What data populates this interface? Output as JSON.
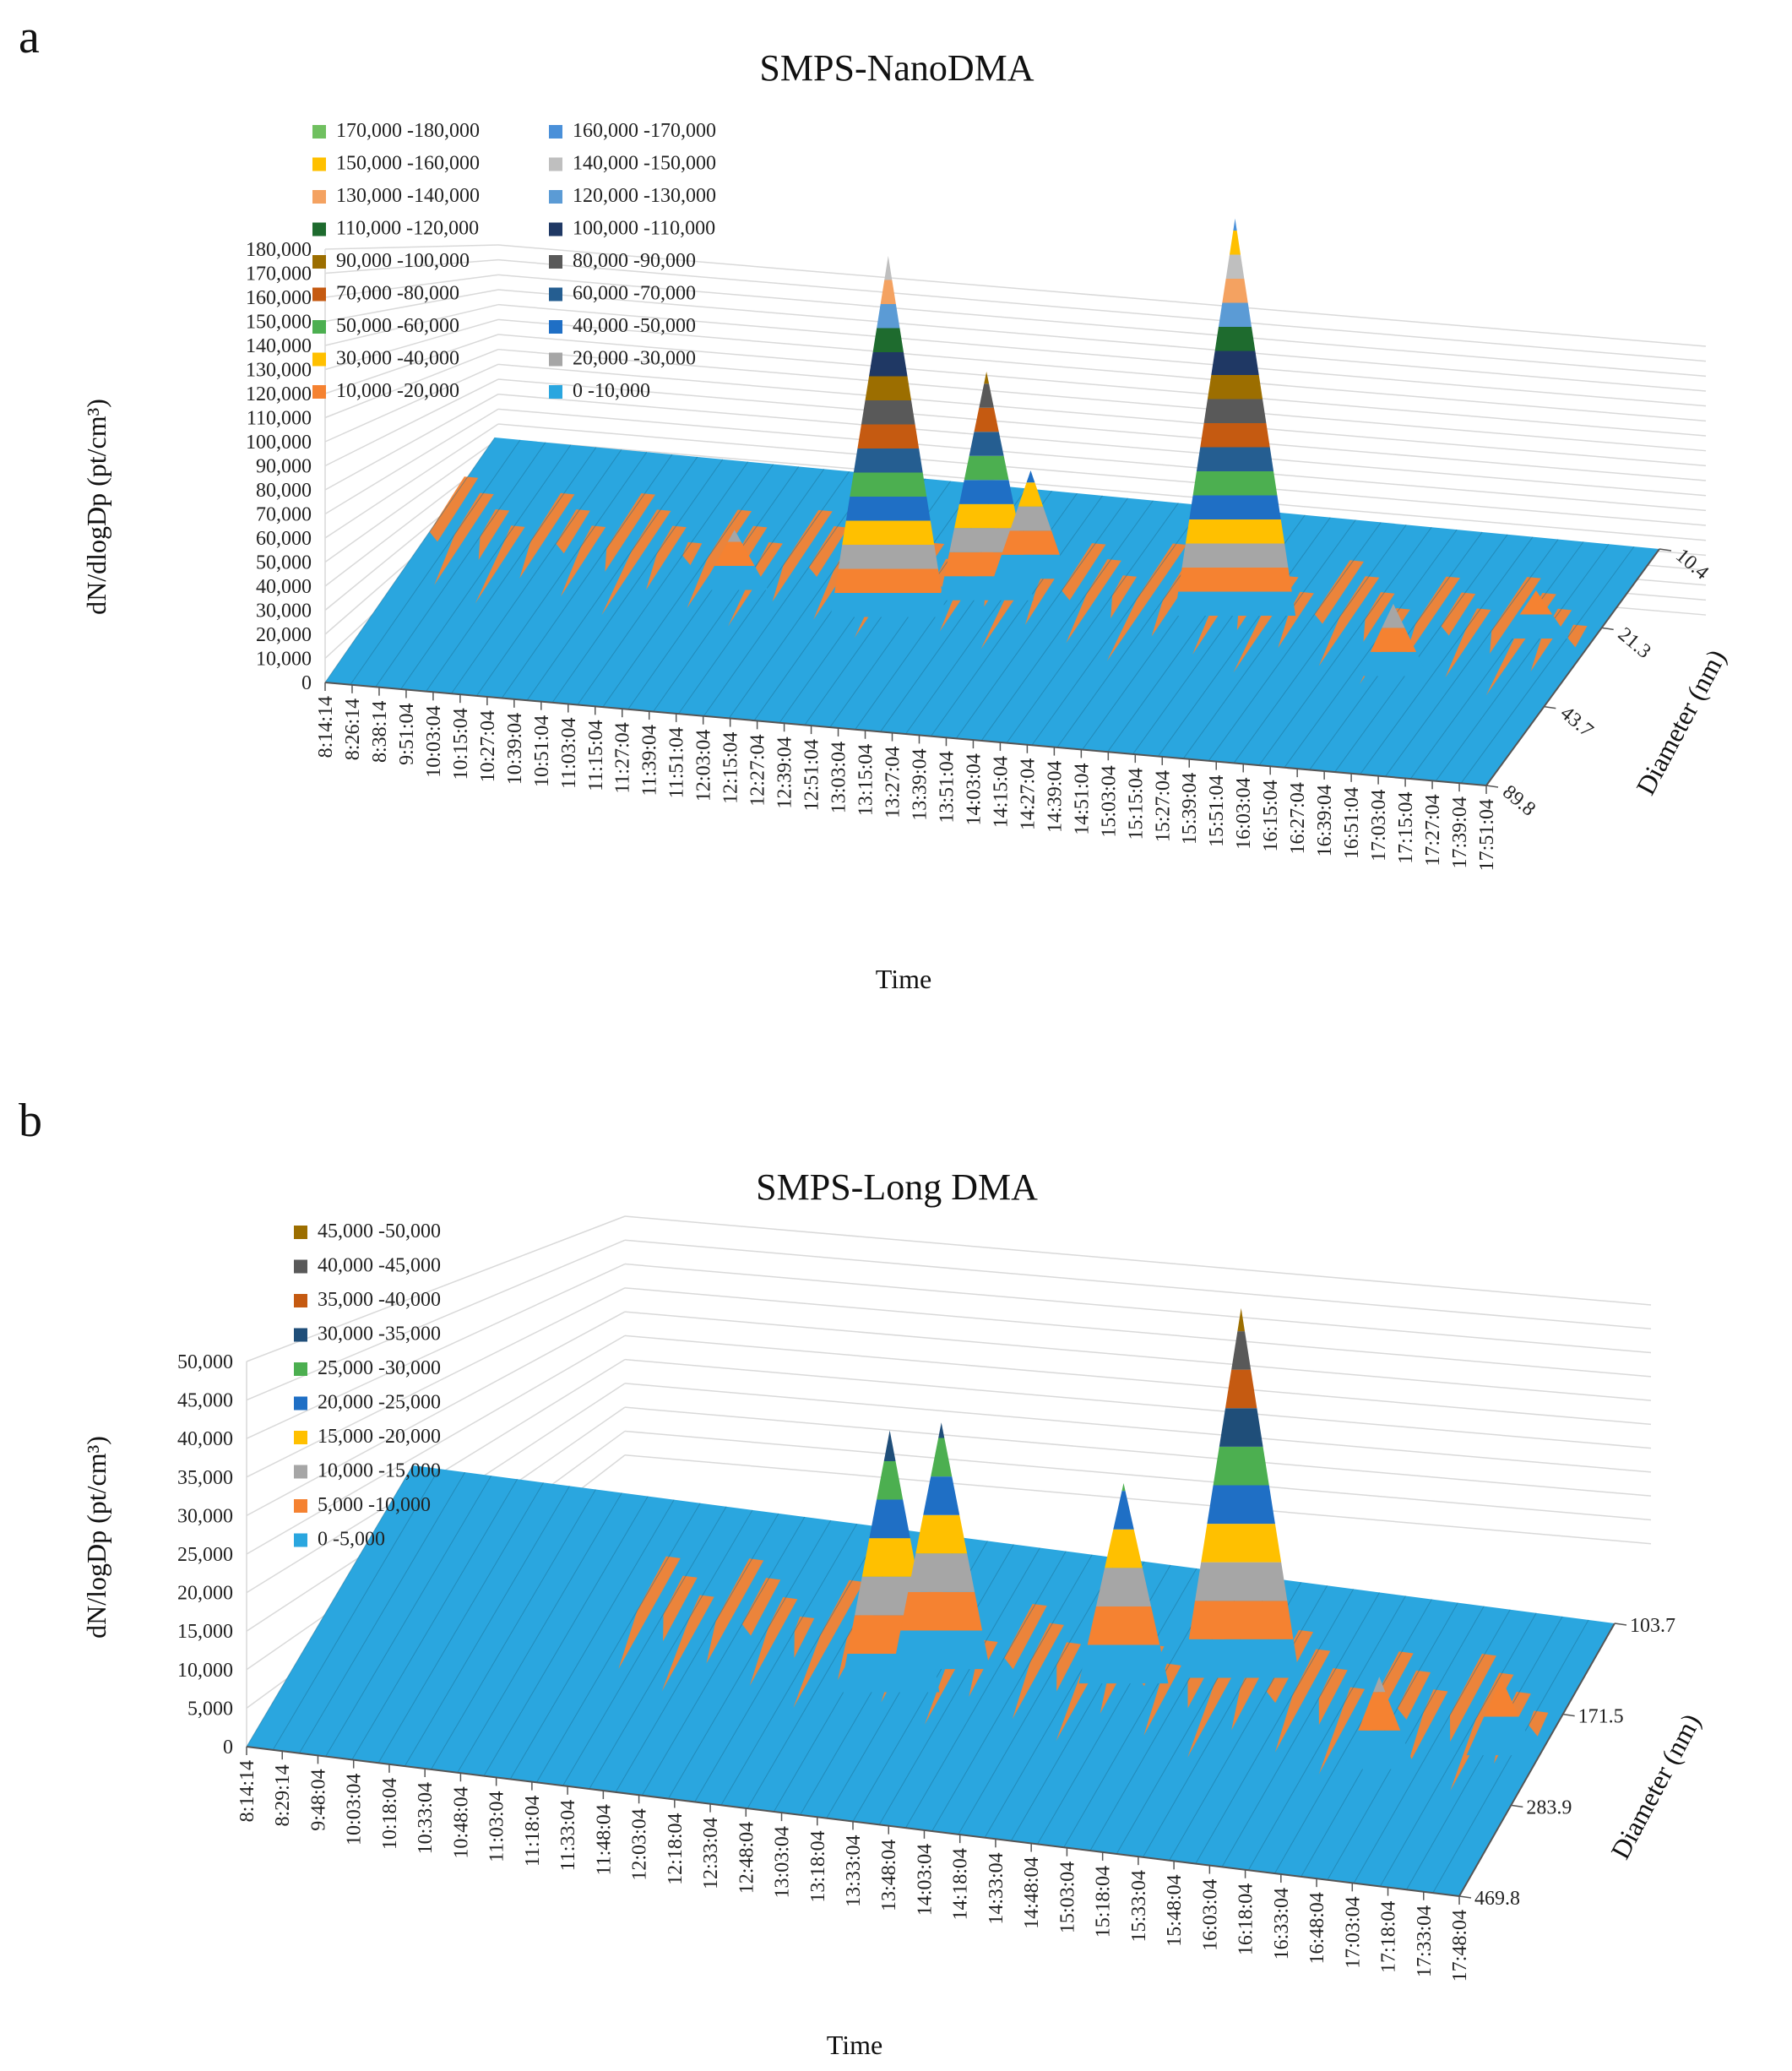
{
  "colors": {
    "blue": "#2aa6df",
    "orange": "#f58231",
    "gray": "#a6a6a6",
    "yellow": "#ffc000",
    "lightblue": "#5b9bd5",
    "green": "#4caf50",
    "darkblue": "#1f4e79",
    "brown": "#c55a11",
    "darkgray": "#595959",
    "olive": "#9c6e00",
    "navy": "#1f3864",
    "darkgreen": "#1e6b2e",
    "lightgreen": "#70c060",
    "lightgray": "#bfbfbf",
    "salmon": "#f4a261",
    "midblue": "#4a90d9",
    "steel": "#255e91"
  },
  "chart_data": [
    {
      "panel_label": "a",
      "type": "surface",
      "title": "SMPS-NanoDMA",
      "xlabel": "Time",
      "ylabel": "dN/dlogDp  (pt/cm³)",
      "zlabel": "Diameter (nm)",
      "zlim": [
        0,
        180000
      ],
      "z_ticks": [
        "0",
        "10,000",
        "20,000",
        "30,000",
        "40,000",
        "50,000",
        "60,000",
        "70,000",
        "80,000",
        "90,000",
        "100,000",
        "110,000",
        "120,000",
        "130,000",
        "140,000",
        "150,000",
        "160,000",
        "170,000",
        "180,000"
      ],
      "diameter_ticks": [
        "10.4",
        "21.3",
        "43.7",
        "89.8"
      ],
      "time_ticks": [
        "8:14:14",
        "8:26:14",
        "8:38:14",
        "9:51:04",
        "10:03:04",
        "10:15:04",
        "10:27:04",
        "10:39:04",
        "10:51:04",
        "11:03:04",
        "11:15:04",
        "11:27:04",
        "11:39:04",
        "11:51:04",
        "12:03:04",
        "12:15:04",
        "12:27:04",
        "12:39:04",
        "12:51:04",
        "13:03:04",
        "13:15:04",
        "13:27:04",
        "13:39:04",
        "13:51:04",
        "14:03:04",
        "14:15:04",
        "14:27:04",
        "14:39:04",
        "14:51:04",
        "15:03:04",
        "15:15:04",
        "15:27:04",
        "15:39:04",
        "15:51:04",
        "16:03:04",
        "16:15:04",
        "16:27:04",
        "16:39:04",
        "16:51:04",
        "17:03:04",
        "17:15:04",
        "17:27:04",
        "17:39:04",
        "17:51:04"
      ],
      "legend": [
        {
          "label": "170,000 -180,000",
          "color": "#70c060"
        },
        {
          "label": "160,000 -170,000",
          "color": "#4a90d9"
        },
        {
          "label": "150,000 -160,000",
          "color": "#ffc000"
        },
        {
          "label": "140,000 -150,000",
          "color": "#bfbfbf"
        },
        {
          "label": "130,000 -140,000",
          "color": "#f4a261"
        },
        {
          "label": "120,000 -130,000",
          "color": "#5b9bd5"
        },
        {
          "label": "110,000 -120,000",
          "color": "#1e6b2e"
        },
        {
          "label": "100,000 -110,000",
          "color": "#1f3864"
        },
        {
          "label": "90,000 -100,000",
          "color": "#9c6e00"
        },
        {
          "label": "80,000 -90,000",
          "color": "#595959"
        },
        {
          "label": "70,000 -80,000",
          "color": "#c55a11"
        },
        {
          "label": "60,000 -70,000",
          "color": "#255e91"
        },
        {
          "label": "50,000 -60,000",
          "color": "#4caf50"
        },
        {
          "label": "40,000 -50,000",
          "color": "#1f6fc5"
        },
        {
          "label": "30,000 -40,000",
          "color": "#ffc000"
        },
        {
          "label": "20,000 -30,000",
          "color": "#a6a6a6"
        },
        {
          "label": "10,000 -20,000",
          "color": "#f58231"
        },
        {
          "label": "0 -10,000",
          "color": "#2aa6df"
        }
      ],
      "peaks": [
        {
          "time": "12:51:04",
          "value": 150000
        },
        {
          "time": "13:27:04",
          "value": 95000
        },
        {
          "time": "15:15:04",
          "value": 165000
        },
        {
          "time": "13:39:04",
          "value": 45000
        },
        {
          "time": "16:39:04",
          "value": 30000
        },
        {
          "time": "11:39:04",
          "value": 25000
        },
        {
          "time": "17:27:04",
          "value": 20000
        }
      ]
    },
    {
      "panel_label": "b",
      "type": "surface",
      "title": "SMPS-Long DMA",
      "xlabel": "Time",
      "ylabel": "dN/logDp  (pt/cm³)",
      "zlabel": "Diameter (nm)",
      "zlim": [
        0,
        50000
      ],
      "z_ticks": [
        "0",
        "5,000",
        "10,000",
        "15,000",
        "20,000",
        "25,000",
        "30,000",
        "35,000",
        "40,000",
        "45,000",
        "50,000"
      ],
      "diameter_ticks": [
        "103.7",
        "171.5",
        "283.9",
        "469.8"
      ],
      "time_ticks": [
        "8:14:14",
        "8:29:14",
        "9:48:04",
        "10:03:04",
        "10:18:04",
        "10:33:04",
        "10:48:04",
        "11:03:04",
        "11:18:04",
        "11:33:04",
        "11:48:04",
        "12:03:04",
        "12:18:04",
        "12:33:04",
        "12:48:04",
        "13:03:04",
        "13:18:04",
        "13:33:04",
        "13:48:04",
        "14:03:04",
        "14:18:04",
        "14:33:04",
        "14:48:04",
        "15:03:04",
        "15:18:04",
        "15:33:04",
        "15:48:04",
        "16:03:04",
        "16:18:04",
        "16:33:04",
        "16:48:04",
        "17:03:04",
        "17:18:04",
        "17:33:04",
        "17:48:04"
      ],
      "legend": [
        {
          "label": "45,000 -50,000",
          "color": "#9c6e00"
        },
        {
          "label": "40,000 -45,000",
          "color": "#595959"
        },
        {
          "label": "35,000 -40,000",
          "color": "#c55a11"
        },
        {
          "label": "30,000 -35,000",
          "color": "#1f4e79"
        },
        {
          "label": "25,000 -30,000",
          "color": "#4caf50"
        },
        {
          "label": "20,000 -25,000",
          "color": "#1f6fc5"
        },
        {
          "label": "15,000 -20,000",
          "color": "#ffc000"
        },
        {
          "label": "10,000 -15,000",
          "color": "#a6a6a6"
        },
        {
          "label": "5,000 -10,000",
          "color": "#f58231"
        },
        {
          "label": "0 -5,000",
          "color": "#2aa6df"
        }
      ],
      "peaks": [
        {
          "time": "13:18:04",
          "value": 34000
        },
        {
          "time": "13:33:04",
          "value": 32000
        },
        {
          "time": "14:48:04",
          "value": 26000
        },
        {
          "time": "15:33:04",
          "value": 48000
        },
        {
          "time": "16:48:04",
          "value": 12000
        },
        {
          "time": "17:33:04",
          "value": 10000
        }
      ]
    }
  ]
}
